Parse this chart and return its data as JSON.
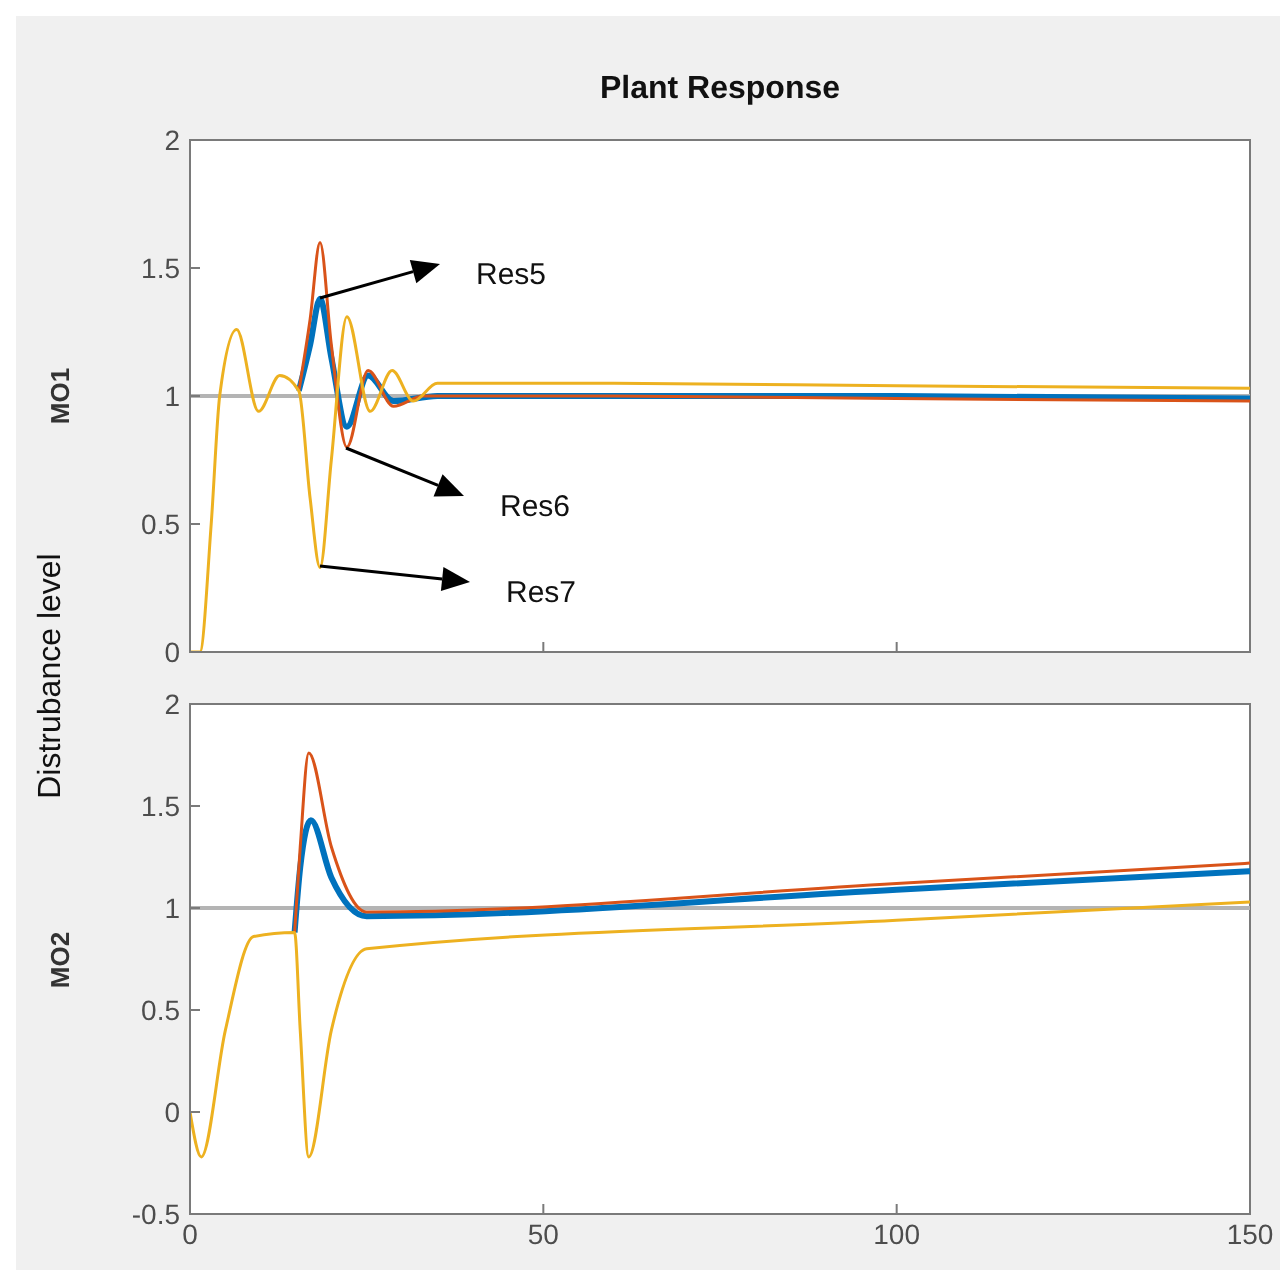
{
  "chart_data": [
    {
      "type": "line",
      "title": "Plant Response",
      "ylabel": "MO1",
      "annotations": [
        "Distrubance level",
        "Res5",
        "Res6",
        "Res7"
      ],
      "xlim": [
        0,
        150
      ],
      "xticks": [
        0,
        50,
        100,
        150
      ],
      "ylim": [
        0,
        2
      ],
      "yticks": [
        0,
        0.5,
        1,
        1.5,
        2
      ],
      "tick_labels": "y",
      "grid": false,
      "ref_lines": [
        {
          "axis": "y",
          "value": 1,
          "color": "#b4b4b4"
        }
      ],
      "series": [
        {
          "color": "#0072bd",
          "x": [
            15.4,
            17,
            18.4,
            20,
            22.2,
            25.2,
            28.8,
            35,
            60,
            100,
            150
          ],
          "values": [
            1.02,
            1.2,
            1.38,
            1.15,
            0.88,
            1.08,
            0.98,
            1.0,
            1.0,
            1.0,
            0.99
          ]
        },
        {
          "color": "#d95319",
          "x": [
            15.4,
            17,
            18.4,
            20,
            22.2,
            25.2,
            28.8,
            33,
            60,
            100,
            150
          ],
          "values": [
            1.02,
            1.3,
            1.6,
            1.2,
            0.8,
            1.1,
            0.96,
            1.0,
            1.0,
            0.99,
            0.98
          ]
        },
        {
          "color": "#edb120",
          "x": [
            0,
            1.4,
            3,
            4.2,
            6.6,
            9.7,
            12.7,
            15.4,
            17,
            18.4,
            20,
            22.2,
            25.5,
            28.6,
            31.6,
            35,
            60,
            100,
            150
          ],
          "values": [
            0,
            0,
            0.5,
            1.0,
            1.26,
            0.94,
            1.08,
            1.02,
            0.6,
            0.33,
            0.75,
            1.31,
            0.94,
            1.1,
            0.98,
            1.05,
            1.05,
            1.04,
            1.03
          ]
        }
      ]
    },
    {
      "type": "line",
      "ylabel": "MO2",
      "xlim": [
        0,
        150
      ],
      "xticks": [
        0,
        50,
        100,
        150
      ],
      "ylim": [
        -0.5,
        2
      ],
      "yticks": [
        -0.5,
        0,
        0.5,
        1,
        1.5,
        2
      ],
      "grid": false,
      "ref_lines": [
        {
          "axis": "y",
          "value": 1,
          "color": "#b4b4b4"
        }
      ],
      "series": [
        {
          "color": "#0072bd",
          "x": [
            14.8,
            15.6,
            17.1,
            20,
            25,
            100,
            150
          ],
          "values": [
            0.88,
            1.2,
            1.43,
            1.15,
            0.96,
            1.09,
            1.18
          ]
        },
        {
          "color": "#d95319",
          "x": [
            14.8,
            15.6,
            16.8,
            20,
            25,
            100,
            150
          ],
          "values": [
            0.88,
            1.3,
            1.76,
            1.3,
            0.98,
            1.12,
            1.22
          ]
        },
        {
          "color": "#edb120",
          "x": [
            0,
            1.6,
            5,
            9,
            14.8,
            15.6,
            16.8,
            20,
            25,
            100,
            150
          ],
          "values": [
            0,
            -0.22,
            0.4,
            0.86,
            0.88,
            0.4,
            -0.22,
            0.4,
            0.8,
            0.94,
            1.03
          ]
        }
      ]
    }
  ]
}
